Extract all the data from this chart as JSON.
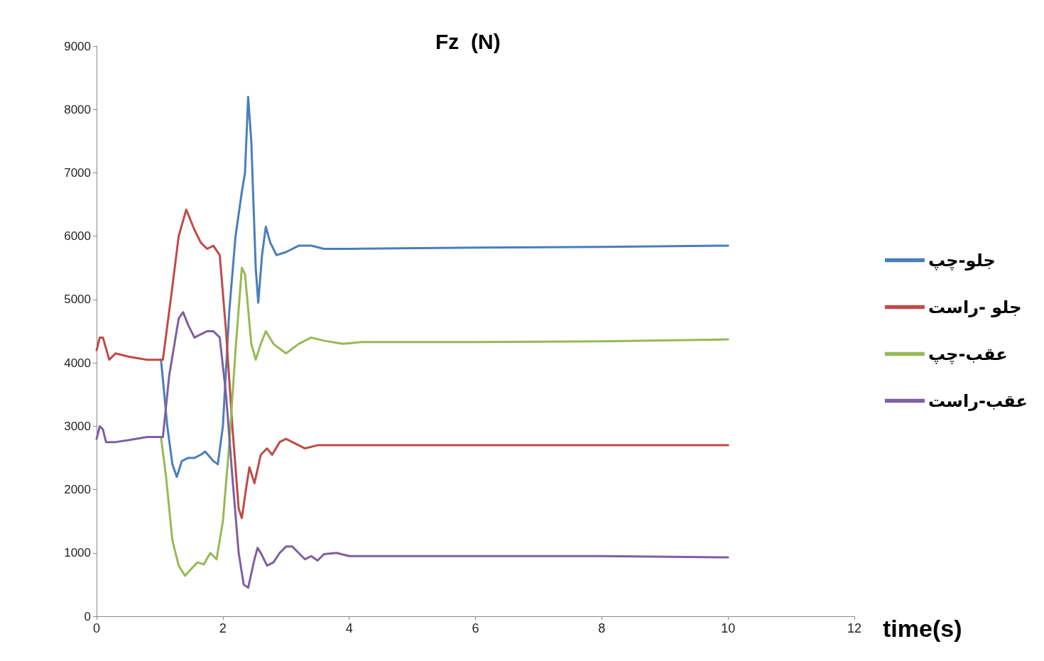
{
  "chart_data": {
    "type": "line",
    "title": "Fz  (N)",
    "xlabel": "time(s)",
    "xlim": [
      0,
      12
    ],
    "xticks": [
      0,
      2,
      4,
      6,
      8,
      10,
      12
    ],
    "ylim": [
      0,
      9000
    ],
    "yticks": [
      0,
      1000,
      2000,
      3000,
      4000,
      5000,
      6000,
      7000,
      8000,
      9000
    ],
    "grid": false,
    "legend": "right",
    "marker": "none",
    "line_style": "solid",
    "series": [
      {
        "name": "جلو-چپ",
        "color": "#4a7ebb",
        "x": [
          1.02,
          1.12,
          1.2,
          1.27,
          1.35,
          1.45,
          1.55,
          1.65,
          1.72,
          1.85,
          1.92,
          2.0,
          2.1,
          2.2,
          2.3,
          2.35,
          2.4,
          2.45,
          2.52,
          2.56,
          2.62,
          2.68,
          2.75,
          2.85,
          3.0,
          3.2,
          3.4,
          3.6,
          4,
          6,
          8,
          10
        ],
        "values": [
          4050,
          3000,
          2400,
          2200,
          2450,
          2500,
          2500,
          2550,
          2600,
          2450,
          2400,
          3000,
          4800,
          6000,
          6700,
          7000,
          8200,
          7500,
          5500,
          4950,
          5700,
          6150,
          5900,
          5700,
          5750,
          5850,
          5850,
          5800,
          5800,
          5820,
          5830,
          5850
        ]
      },
      {
        "name": "جلو -راست",
        "color": "#be4b48",
        "x": [
          0,
          0.05,
          0.1,
          0.2,
          0.3,
          0.5,
          0.8,
          1.05,
          1.2,
          1.3,
          1.42,
          1.55,
          1.65,
          1.75,
          1.85,
          1.95,
          2.05,
          2.15,
          2.25,
          2.3,
          2.38,
          2.42,
          2.5,
          2.6,
          2.7,
          2.78,
          2.9,
          3.0,
          3.1,
          3.3,
          3.5,
          3.8,
          4,
          6,
          8,
          10
        ],
        "values": [
          4200,
          4400,
          4400,
          4050,
          4150,
          4100,
          4050,
          4050,
          5200,
          6000,
          6420,
          6100,
          5900,
          5800,
          5850,
          5700,
          4500,
          3000,
          1700,
          1550,
          2100,
          2350,
          2100,
          2550,
          2650,
          2550,
          2750,
          2800,
          2750,
          2650,
          2700,
          2700,
          2700,
          2700,
          2700,
          2700
        ]
      },
      {
        "name": "عقب-چپ",
        "color": "#98b954",
        "x": [
          1.02,
          1.1,
          1.2,
          1.3,
          1.4,
          1.5,
          1.6,
          1.7,
          1.8,
          1.9,
          2.0,
          2.1,
          2.2,
          2.3,
          2.35,
          2.45,
          2.52,
          2.6,
          2.68,
          2.8,
          3.0,
          3.2,
          3.4,
          3.6,
          3.9,
          4.2,
          6,
          8,
          10
        ],
        "values": [
          2830,
          2200,
          1200,
          800,
          640,
          750,
          850,
          820,
          1000,
          900,
          1500,
          2700,
          4200,
          5500,
          5400,
          4300,
          4050,
          4300,
          4500,
          4300,
          4150,
          4300,
          4400,
          4350,
          4300,
          4330,
          4330,
          4340,
          4370
        ]
      },
      {
        "name": "عقب-راست",
        "color": "#7d60a0",
        "x": [
          0,
          0.05,
          0.1,
          0.15,
          0.3,
          0.5,
          0.8,
          1.05,
          1.15,
          1.3,
          1.37,
          1.45,
          1.55,
          1.65,
          1.75,
          1.85,
          1.95,
          2.05,
          2.15,
          2.25,
          2.33,
          2.4,
          2.5,
          2.55,
          2.6,
          2.7,
          2.8,
          2.9,
          3.0,
          3.1,
          3.2,
          3.3,
          3.4,
          3.5,
          3.6,
          3.8,
          4,
          6,
          8,
          10
        ],
        "values": [
          2800,
          3000,
          2950,
          2750,
          2750,
          2780,
          2830,
          2830,
          3800,
          4700,
          4800,
          4600,
          4400,
          4450,
          4500,
          4500,
          4400,
          3500,
          2200,
          1000,
          500,
          450,
          900,
          1080,
          1000,
          800,
          850,
          1000,
          1100,
          1100,
          1000,
          900,
          950,
          880,
          980,
          1000,
          950,
          950,
          950,
          930
        ]
      }
    ]
  }
}
